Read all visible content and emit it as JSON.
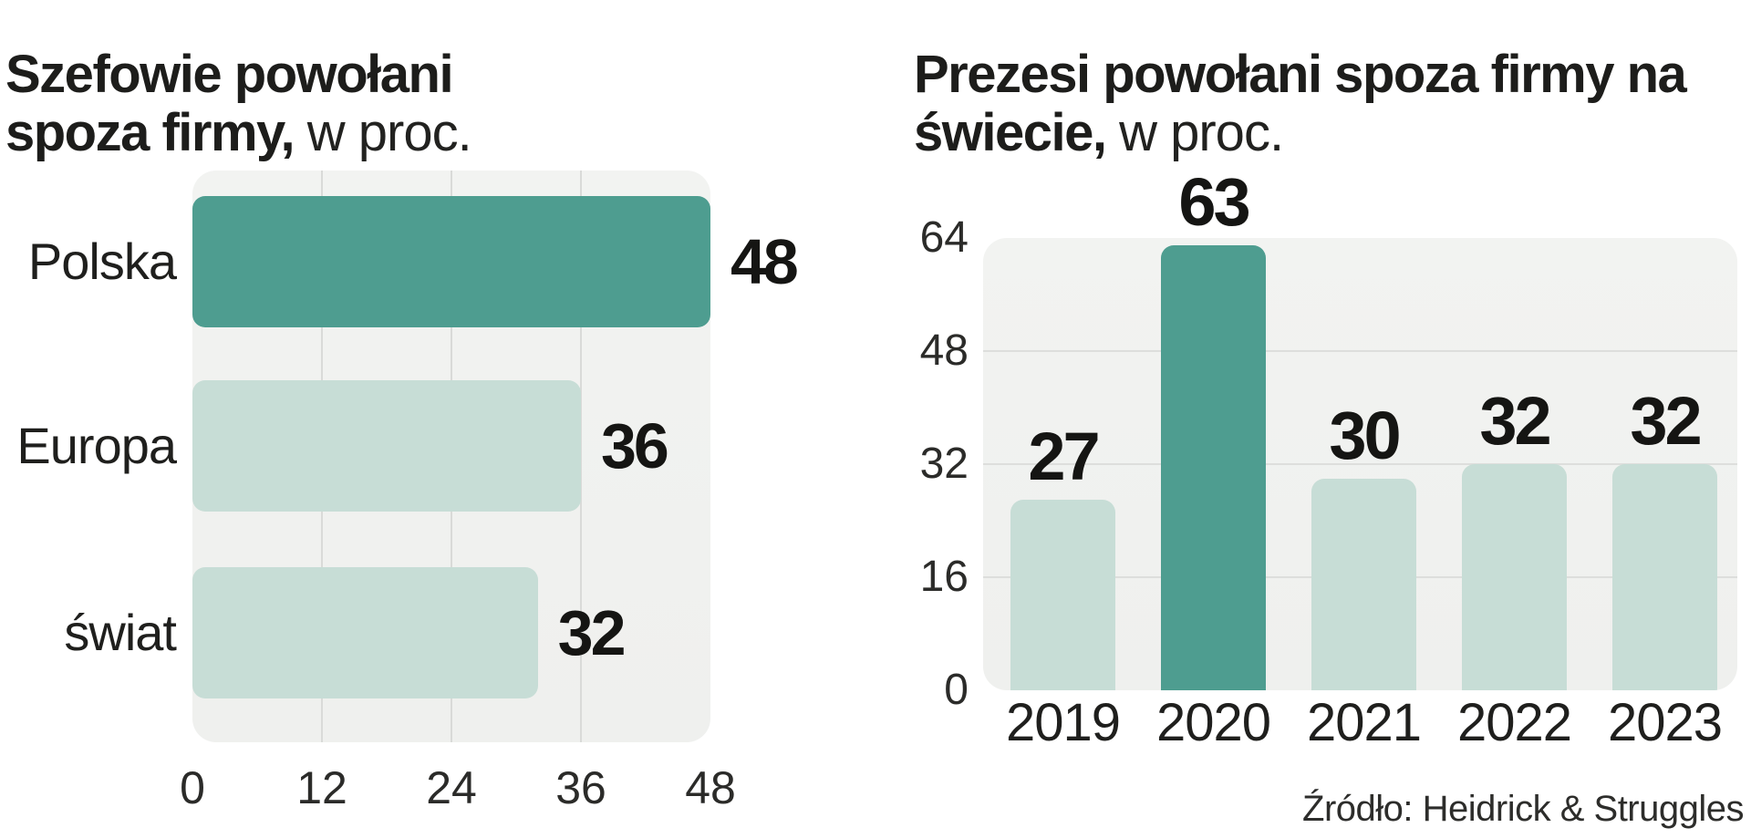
{
  "source": "Źródło: Heidrick & Struggles",
  "colors": {
    "highlight": "#4E9D90",
    "bar": "#C7DDD6",
    "panel": "#F0F1EF",
    "grid": "#D9DAD8",
    "text": "#1D1D1B"
  },
  "chart_data": [
    {
      "type": "bar",
      "orientation": "horizontal",
      "title_bold": "Szefowie powołani spoza firmy,",
      "title_suffix": "w proc.",
      "categories": [
        "Polska",
        "Europa",
        "świat"
      ],
      "values": [
        48,
        36,
        32
      ],
      "highlight_index": 0,
      "x_ticks": [
        0,
        12,
        24,
        36,
        48
      ],
      "xlim": [
        0,
        48
      ],
      "grid": "vertical",
      "legend": "none"
    },
    {
      "type": "bar",
      "orientation": "vertical",
      "title_bold": "Prezesi powołani spoza firmy na świecie,",
      "title_suffix": "w proc.",
      "categories": [
        "2019",
        "2020",
        "2021",
        "2022",
        "2023"
      ],
      "values": [
        27,
        63,
        30,
        32,
        32
      ],
      "highlight_index": 1,
      "y_ticks": [
        64,
        48,
        32,
        16,
        0
      ],
      "ylim": [
        0,
        64
      ],
      "grid": "horizontal",
      "legend": "none"
    }
  ]
}
